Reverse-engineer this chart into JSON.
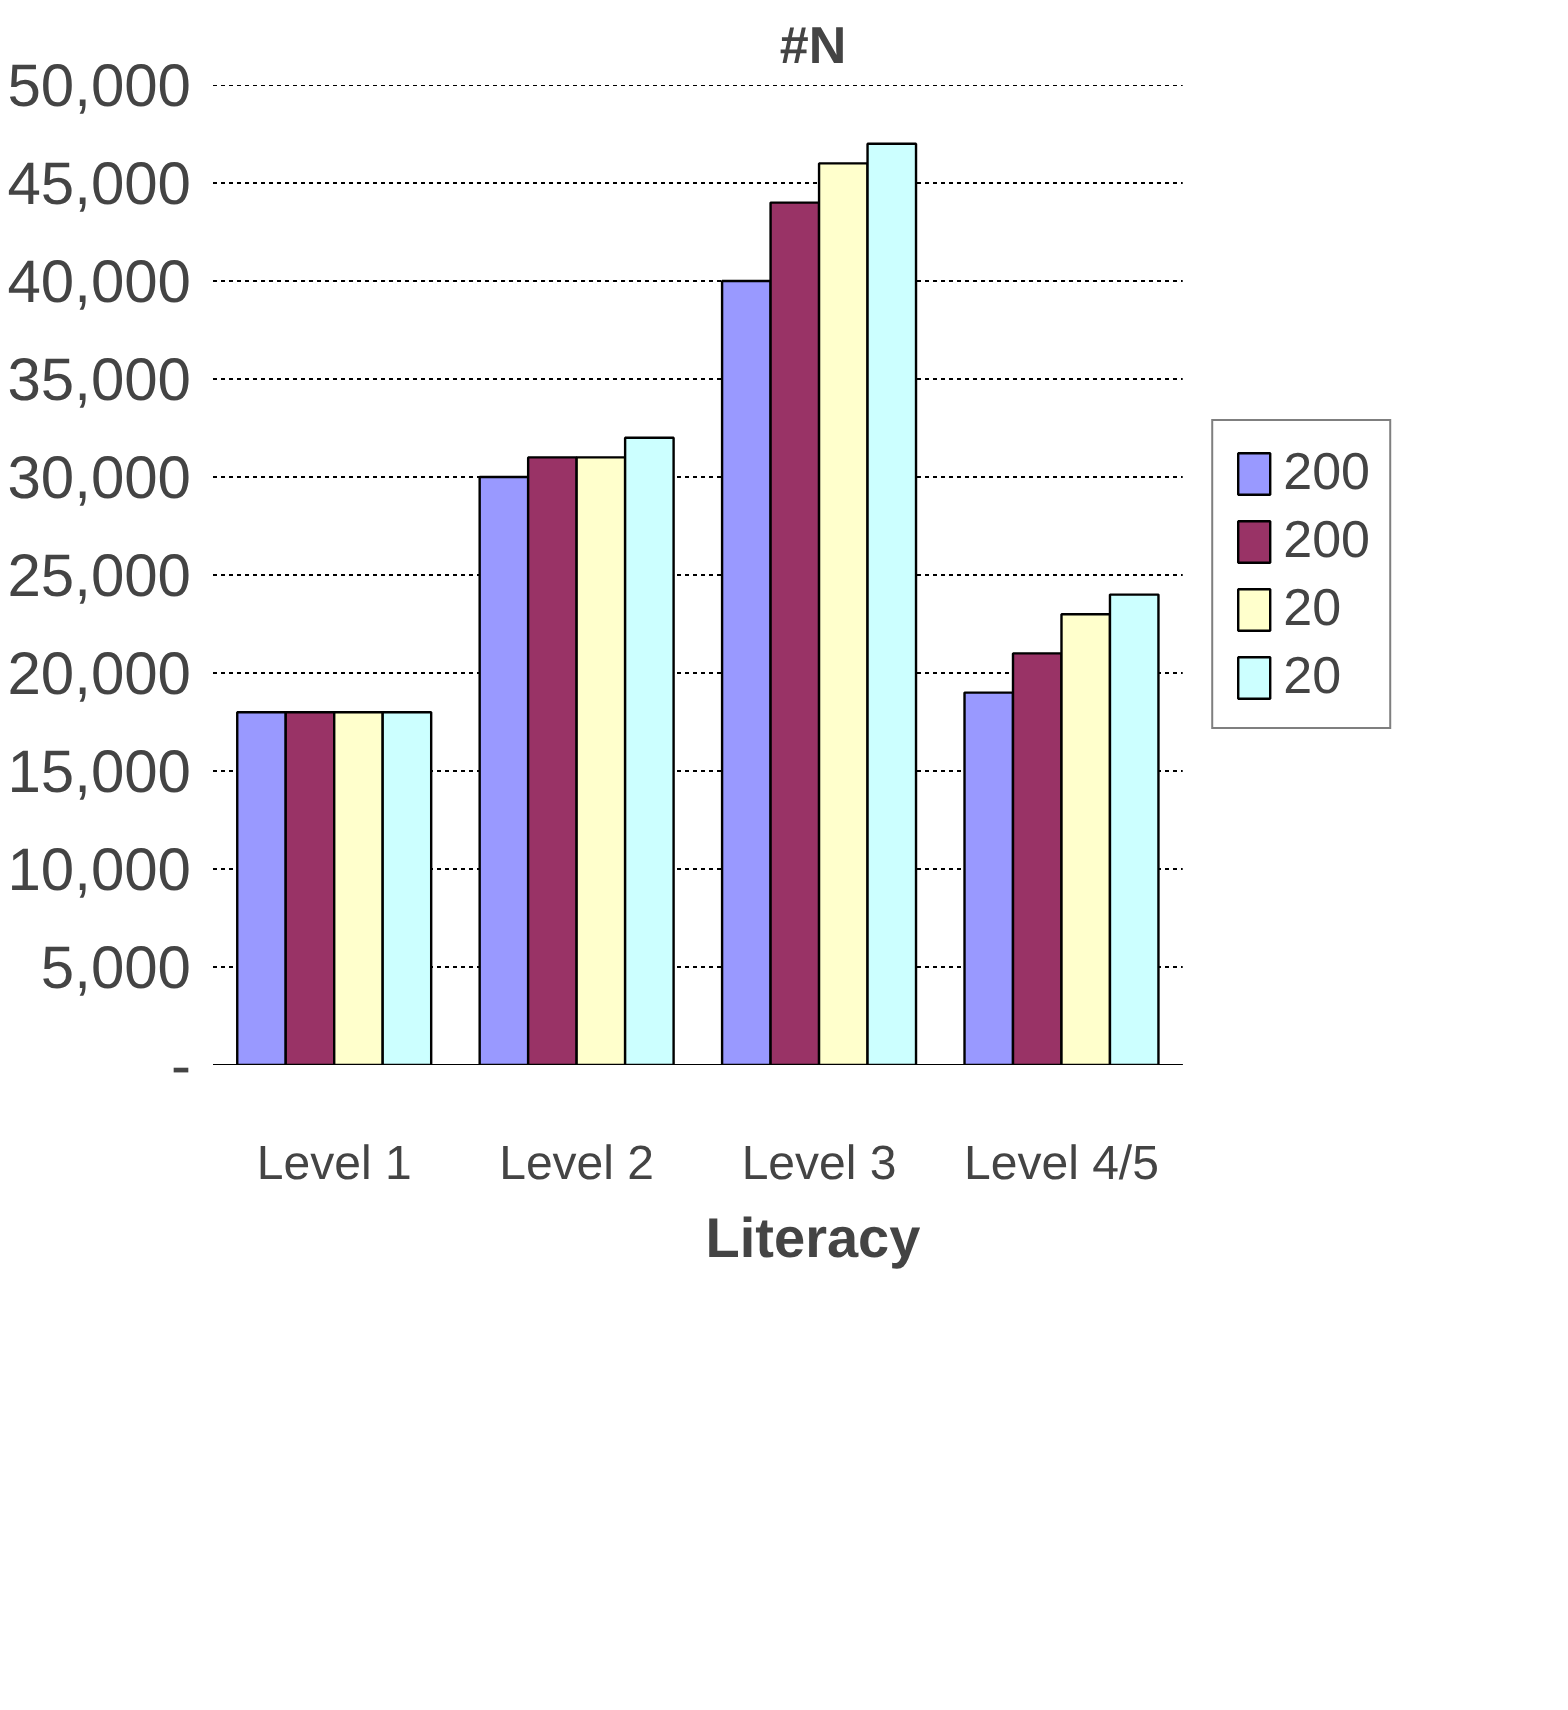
{
  "chart_data": {
    "type": "bar",
    "title": "#N",
    "xlabel": "Literacy",
    "categories": [
      "Level 1",
      "Level 2",
      "Level 3",
      "Level 4/5"
    ],
    "series": [
      {
        "name": "200",
        "color": "#9999ff",
        "values": [
          18000,
          30000,
          40000,
          19000
        ]
      },
      {
        "name": "200",
        "color": "#993366",
        "values": [
          18000,
          31000,
          44000,
          21000
        ]
      },
      {
        "name": "20",
        "color": "#ffffcc",
        "values": [
          18000,
          31000,
          46000,
          23000
        ]
      },
      {
        "name": "20",
        "color": "#ccffff",
        "values": [
          18000,
          32000,
          47000,
          24000
        ]
      }
    ],
    "ylim": [
      0,
      50000
    ],
    "yticks": [
      {
        "value": 0,
        "label": "-"
      },
      {
        "value": 5000,
        "label": "5,000"
      },
      {
        "value": 10000,
        "label": "10,000"
      },
      {
        "value": 15000,
        "label": "15,000"
      },
      {
        "value": 20000,
        "label": "20,000"
      },
      {
        "value": 25000,
        "label": "25,000"
      },
      {
        "value": 30000,
        "label": "30,000"
      },
      {
        "value": 35000,
        "label": "35,000"
      },
      {
        "value": 40000,
        "label": "40,000"
      },
      {
        "value": 45000,
        "label": "45,000"
      },
      {
        "value": 50000,
        "label": "50,000"
      }
    ],
    "grid": "y",
    "legend": "right"
  }
}
